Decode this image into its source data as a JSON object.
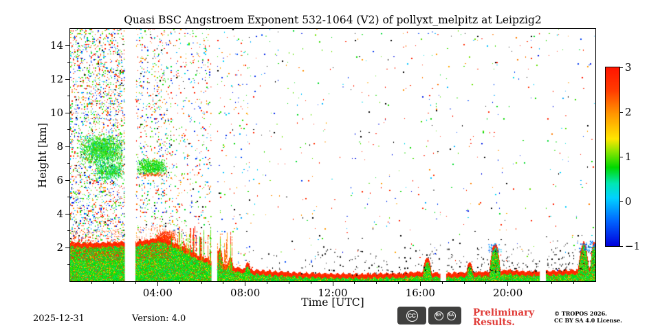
{
  "chart_data": {
    "type": "heatmap",
    "title": "Quasi BSC Angstroem Exponent 532-1064 (V2) of pollyxt_melpitz at Leipzig2",
    "xlabel": "Time [UTC]",
    "ylabel": "Height [km]",
    "x_axis": {
      "unit": "hours_utc",
      "min": 0,
      "max": 24,
      "major_ticks": [
        {
          "hour": 4,
          "label": "04:00"
        },
        {
          "hour": 8,
          "label": "08:00"
        },
        {
          "hour": 12,
          "label": "12:00"
        },
        {
          "hour": 16,
          "label": "16:00"
        },
        {
          "hour": 20,
          "label": "20:00"
        }
      ],
      "minor_tick_every_hours": 1
    },
    "y_axis": {
      "unit": "km",
      "min": 0,
      "max": 15,
      "major_ticks": [
        {
          "km": 2,
          "label": "2"
        },
        {
          "km": 4,
          "label": "4"
        },
        {
          "km": 6,
          "label": "6"
        },
        {
          "km": 8,
          "label": "8"
        },
        {
          "km": 10,
          "label": "10"
        },
        {
          "km": 12,
          "label": "12"
        },
        {
          "km": 14,
          "label": "14"
        }
      ],
      "minor_tick_every_km": 1
    },
    "colorbar": {
      "vmin": -1,
      "vmax": 3,
      "tick_values": [
        3,
        2,
        1,
        0,
        -1
      ],
      "tick_labels": [
        "3",
        "2",
        "1",
        "0",
        "−1"
      ],
      "colormap": "jet",
      "stops": [
        [
          0.0,
          "#0000dc"
        ],
        [
          0.14,
          "#0064ff"
        ],
        [
          0.27,
          "#00d2ff"
        ],
        [
          0.35,
          "#00e6b4"
        ],
        [
          0.44,
          "#00d800"
        ],
        [
          0.53,
          "#8ce600"
        ],
        [
          0.6,
          "#ffe600"
        ],
        [
          0.74,
          "#ff9600"
        ],
        [
          0.87,
          "#ff3c00"
        ],
        [
          1.0,
          "#ff1400"
        ]
      ]
    },
    "data_gaps_hours": [
      [
        2.5,
        2.98
      ],
      [
        6.46,
        6.7
      ],
      [
        16.92,
        17.18
      ],
      [
        21.46,
        21.72
      ]
    ],
    "noise_speckle": {
      "segments": [
        {
          "t0": 0,
          "t1": 2.5,
          "density": 0.3
        },
        {
          "t0": 2.98,
          "t1": 4.6,
          "density": 0.16
        },
        {
          "t0": 4.6,
          "t1": 6.46,
          "density": 0.09
        },
        {
          "t0": 6.7,
          "t1": 8.2,
          "density": 0.045
        },
        {
          "t0": 8.2,
          "t1": 24,
          "density": 0.012
        }
      ],
      "value_palette": [
        {
          "v": 2.8,
          "w": 0.28
        },
        {
          "v": 2.0,
          "w": 0.14
        },
        {
          "v": 0.85,
          "w": 0.26
        },
        {
          "v": 0.05,
          "w": 0.12
        },
        {
          "v": -0.75,
          "w": 0.2
        }
      ],
      "black_fraction_left": 0.05
    },
    "elevated_layers": [
      {
        "t0": 0.35,
        "t1": 2.5,
        "h0": 6.9,
        "h1": 8.8,
        "value": 0.8,
        "density": 0.5,
        "cyan_fraction": 0.1
      },
      {
        "t0": 1.0,
        "t1": 2.5,
        "h0": 6.0,
        "h1": 7.1,
        "value": 0.7,
        "density": 0.45,
        "cyan_fraction": 0.08
      },
      {
        "t0": 2.98,
        "t1": 4.45,
        "h0": 6.3,
        "h1": 7.35,
        "value": 0.8,
        "density": 0.55,
        "orange_base": true
      },
      {
        "t0": 3.85,
        "t1": 4.85,
        "h0": 2.1,
        "h1": 3.1,
        "value": 2.6,
        "density": 0.5
      }
    ],
    "boundary_layer": {
      "top_km_points": [
        [
          0,
          2.3
        ],
        [
          1,
          2.25
        ],
        [
          2,
          2.3
        ],
        [
          3,
          2.35
        ],
        [
          3.6,
          2.45
        ],
        [
          4.1,
          2.6
        ],
        [
          4.6,
          2.35
        ],
        [
          5.2,
          1.95
        ],
        [
          5.8,
          1.55
        ],
        [
          6.4,
          1.25
        ],
        [
          7,
          0.95
        ],
        [
          7.6,
          0.8
        ],
        [
          8.4,
          0.65
        ],
        [
          9.5,
          0.55
        ],
        [
          11,
          0.45
        ],
        [
          13,
          0.4
        ],
        [
          15,
          0.45
        ],
        [
          16,
          0.55
        ],
        [
          17,
          0.45
        ],
        [
          18,
          0.5
        ],
        [
          19,
          0.55
        ],
        [
          20,
          0.65
        ],
        [
          21,
          0.55
        ],
        [
          22,
          0.6
        ],
        [
          23,
          0.65
        ],
        [
          24,
          0.85
        ]
      ],
      "top_band_value": 2.8,
      "body_value": 0.85
    },
    "plumes": [
      {
        "t": 6.82,
        "h": 1.9,
        "w": 0.25
      },
      {
        "t": 7.3,
        "h": 1.45,
        "w": 0.2
      },
      {
        "t": 8.1,
        "h": 1.15,
        "w": 0.2
      },
      {
        "t": 16.3,
        "h": 1.4,
        "w": 0.25
      },
      {
        "t": 18.25,
        "h": 1.15,
        "w": 0.2
      },
      {
        "t": 19.4,
        "h": 2.25,
        "w": 0.3,
        "cold_top": true
      },
      {
        "t": 23.45,
        "h": 2.3,
        "w": 0.3,
        "cold_top": true
      },
      {
        "t": 23.92,
        "h": 2.4,
        "w": 0.2,
        "cold_top": true
      }
    ],
    "virga_streaks": {
      "t0": 4.55,
      "t1": 7.45,
      "hmax": 3.3,
      "count": 90
    },
    "black_speckle_band": {
      "t0": 8,
      "t1": 24,
      "density_start": 0.02,
      "density_end": 0.16,
      "band_km": 1.9
    }
  },
  "footer": {
    "date": "2025-12-31",
    "version": "Version: 4.0",
    "license_badge": {
      "cc": "CC",
      "by": "BY",
      "sa": "SA"
    },
    "preliminary": {
      "line1": "Preliminary",
      "line2": "Results.",
      "color": "#e03a36"
    },
    "copyright": {
      "line1": "© TROPOS 2026.",
      "line2": "CC BY SA 4.0 License."
    }
  }
}
